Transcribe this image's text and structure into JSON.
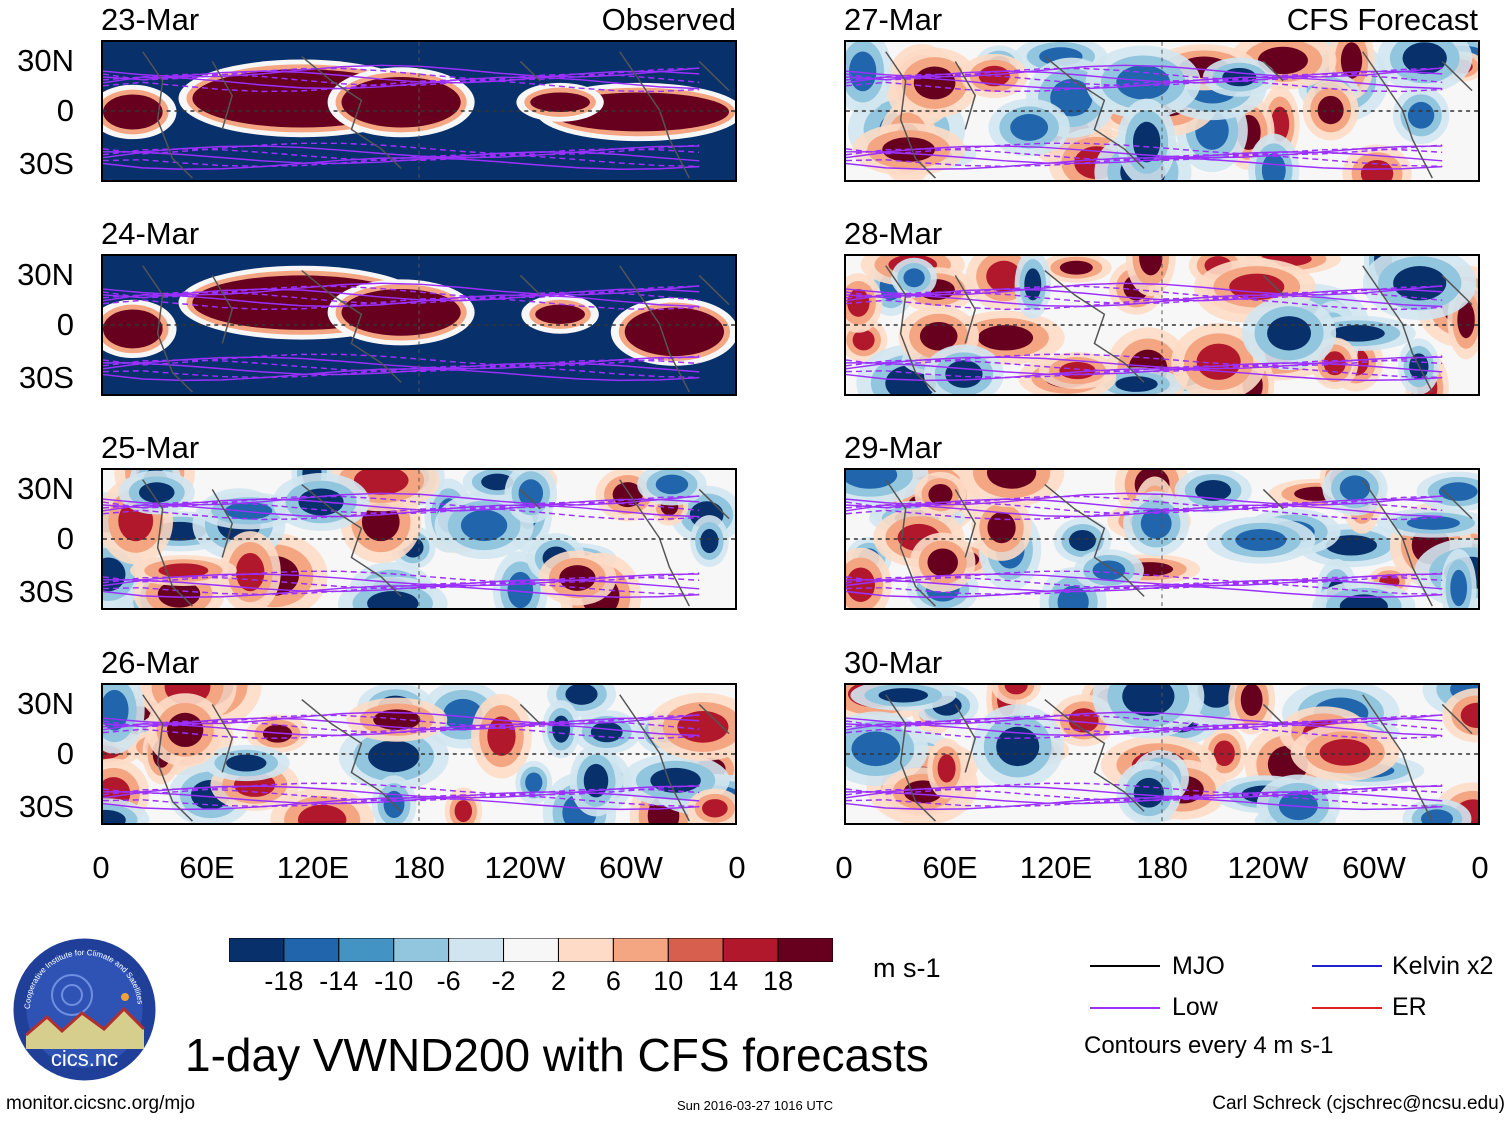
{
  "chart_data": {
    "type": "heatmap",
    "title": "1-day VWND200 with CFS forecasts",
    "variable": "VWND200",
    "units": "m s-1",
    "x_axis": {
      "ticks": [
        "0",
        "60E",
        "120E",
        "180",
        "120W",
        "60W",
        "0"
      ],
      "range": [
        0,
        360
      ]
    },
    "y_axis": {
      "ticks": [
        "30N",
        "0",
        "30S"
      ],
      "range": [
        -40,
        40
      ]
    },
    "observed_label": "Observed",
    "forecast_label": "CFS Forecast",
    "panels": [
      {
        "date": "23-Mar",
        "column": "observed",
        "row": 0
      },
      {
        "date": "24-Mar",
        "column": "observed",
        "row": 1
      },
      {
        "date": "25-Mar",
        "column": "observed",
        "row": 2
      },
      {
        "date": "26-Mar",
        "column": "observed",
        "row": 3
      },
      {
        "date": "27-Mar",
        "column": "forecast",
        "row": 0
      },
      {
        "date": "28-Mar",
        "column": "forecast",
        "row": 1
      },
      {
        "date": "29-Mar",
        "column": "forecast",
        "row": 2
      },
      {
        "date": "30-Mar",
        "column": "forecast",
        "row": 3
      }
    ],
    "colorbar": {
      "levels": [
        -18,
        -14,
        -10,
        -6,
        -2,
        2,
        6,
        10,
        14,
        18
      ],
      "colors": [
        "#08306b",
        "#2166ac",
        "#4393c3",
        "#92c5de",
        "#d1e5f0",
        "#f7f7f7",
        "#fddbc7",
        "#f4a582",
        "#d6604d",
        "#b2182b",
        "#67001f"
      ],
      "tick_labels": [
        "-18",
        "-14",
        "-10",
        "-6",
        "-2",
        "2",
        "6",
        "10",
        "14",
        "18"
      ]
    },
    "legend": [
      {
        "label": "MJO",
        "color": "#000000"
      },
      {
        "label": "Kelvin x2",
        "color": "#2222cc"
      },
      {
        "label": "Low",
        "color": "#9b30ff"
      },
      {
        "label": "ER",
        "color": "#dd2222"
      }
    ],
    "contour_note": "Contours every 4 m s-1"
  },
  "footer": {
    "logo_name": "cics.nc",
    "logo_ring_text": "Cooperative Institute for Climate and Satellites",
    "url": "monitor.cicsnc.org/mjo",
    "timestamp": "Sun 2016-03-27 1016 UTC",
    "credit": "Carl Schreck (cjschrec@ncsu.edu)"
  }
}
